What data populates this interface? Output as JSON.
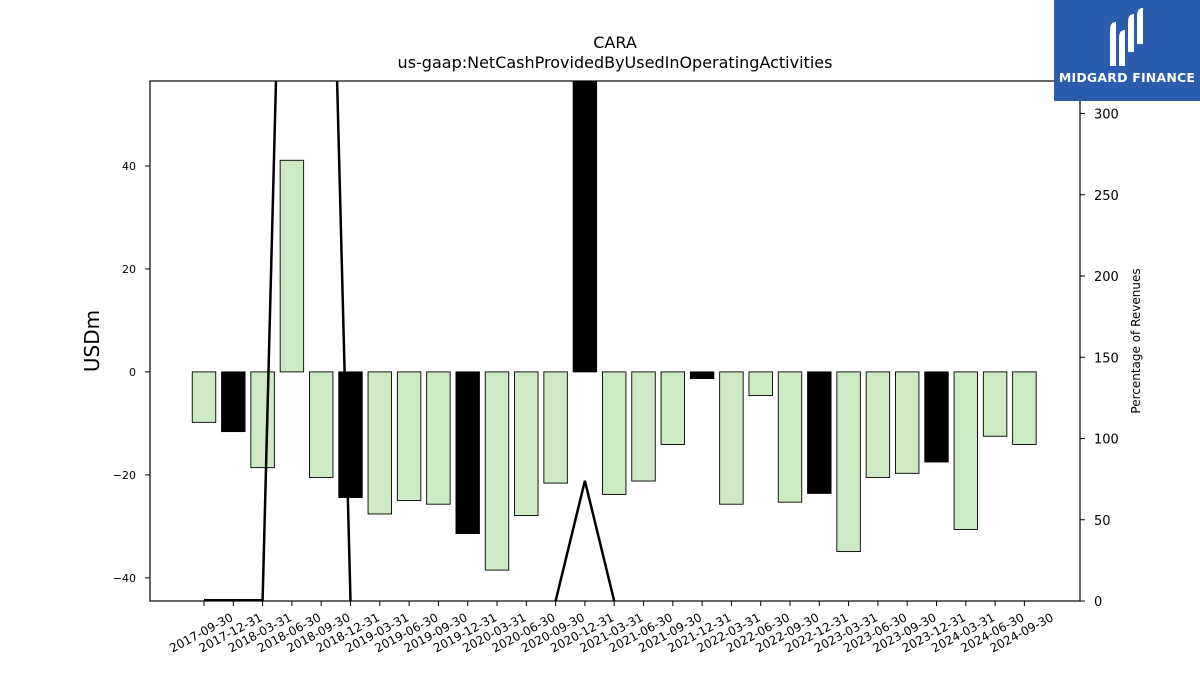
{
  "logo": {
    "text": "MIDGARD FINANCE",
    "background": "#2b5cad"
  },
  "chart_data": {
    "type": "bar",
    "title": "CARA",
    "subtitle": "us-gaap:NetCashProvidedByUsedInOperatingActivities",
    "ylabel": "USDm",
    "y2label": "Percentage of Revenues",
    "ylim": [
      -44.5,
      56.5
    ],
    "y2lim": [
      0,
      320
    ],
    "yticks": [
      -40,
      -20,
      0,
      20,
      40
    ],
    "y2ticks": [
      0,
      50,
      100,
      150,
      200,
      250,
      300
    ],
    "grid": false,
    "categories": [
      "2017-09-30",
      "2017-12-31",
      "2018-03-31",
      "2018-06-30",
      "2018-09-30",
      "2018-12-31",
      "2019-03-31",
      "2019-06-30",
      "2019-09-30",
      "2019-12-31",
      "2020-03-31",
      "2020-06-30",
      "2020-09-30",
      "2020-12-31",
      "2021-03-31",
      "2021-06-30",
      "2021-09-30",
      "2021-12-31",
      "2022-03-31",
      "2022-06-30",
      "2022-09-30",
      "2022-12-31",
      "2023-03-31",
      "2023-06-30",
      "2023-09-30",
      "2023-12-31",
      "2024-03-31",
      "2024-06-30",
      "2024-09-30"
    ],
    "values": [
      -9.8,
      -11.6,
      -18.6,
      41.1,
      -20.5,
      -24.4,
      -27.6,
      -25.0,
      -25.7,
      -31.4,
      -38.5,
      -27.9,
      -21.6,
      56.5,
      -23.8,
      -21.2,
      -14.1,
      -1.3,
      -25.7,
      -4.6,
      -25.3,
      -23.6,
      -34.9,
      -20.5,
      -19.7,
      -17.5,
      -30.6,
      -12.5,
      -14.1
    ],
    "fourth_quarter_flags": [
      false,
      true,
      false,
      false,
      false,
      true,
      false,
      false,
      false,
      true,
      false,
      false,
      false,
      true,
      false,
      false,
      false,
      true,
      false,
      false,
      false,
      true,
      false,
      false,
      false,
      true,
      false,
      false,
      false
    ],
    "colors": {
      "quarter_bar": "#cdeac4",
      "q4_bar": "#000000",
      "line": "#000000",
      "bar_edge": "#000000"
    },
    "pct_revenue_line": [
      0.5,
      0.5,
      0.5,
      700,
      700,
      0,
      null,
      null,
      null,
      null,
      null,
      null,
      0,
      74,
      0,
      null,
      null,
      null,
      null,
      null,
      null,
      null,
      null,
      null,
      null,
      null,
      null,
      null,
      null
    ]
  }
}
